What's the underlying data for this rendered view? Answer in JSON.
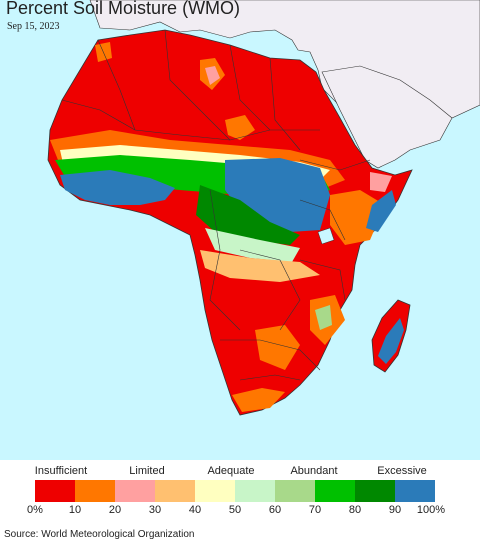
{
  "title": "Percent Soil Moisture (WMO)",
  "date": "Sep 15, 2023",
  "colors": {
    "ocean": "#c9f7ff",
    "land_other": "#f1edf3",
    "border": "#333333"
  },
  "legend": {
    "categories": [
      "Insufficient",
      "Limited",
      "Adequate",
      "Abundant",
      "Excessive"
    ],
    "swatches": [
      "#ee0000",
      "#ff7700",
      "#ffa0a0",
      "#ffc070",
      "#ffffc0",
      "#c8f5c8",
      "#a8d98a",
      "#00c000",
      "#008800",
      "#2b7bb9"
    ],
    "ticks": [
      "0%",
      "10",
      "20",
      "30",
      "40",
      "50",
      "60",
      "70",
      "80",
      "90",
      "100%"
    ]
  },
  "source": "Source: World Meteorological Organization"
}
